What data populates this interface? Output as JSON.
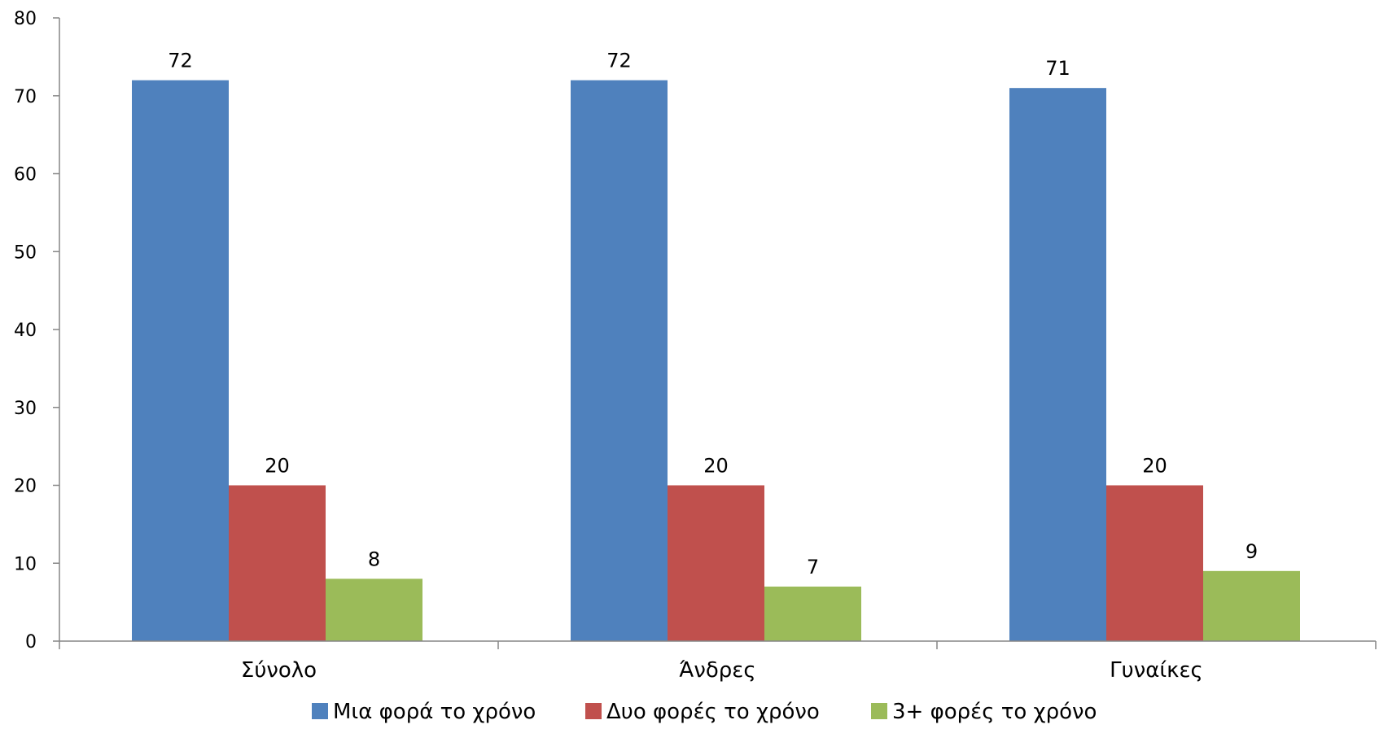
{
  "chart_data": {
    "type": "bar",
    "categories": [
      "Σύνολο",
      "Άνδρες",
      "Γυναίκες"
    ],
    "series": [
      {
        "name": "Μια φορά το χρόνο",
        "values": [
          72,
          72,
          71
        ],
        "labels": [
          "72",
          "72",
          "71"
        ],
        "color": "#4F81BD"
      },
      {
        "name": "Δυο φορές το χρόνο",
        "values": [
          20,
          20,
          20
        ],
        "labels": [
          "20",
          "20",
          "20"
        ],
        "color": "#C0504D"
      },
      {
        "name": "3+ φορές το χρόνο",
        "values": [
          8,
          7,
          9
        ],
        "labels": [
          "8",
          "7",
          "9"
        ],
        "color": "#9BBB59"
      }
    ],
    "yticks": [
      "0",
      "10",
      "20",
      "30",
      "40",
      "50",
      "60",
      "70",
      "80"
    ],
    "ylim": [
      0,
      80
    ],
    "grid": false,
    "legend_position": "bottom",
    "title": "",
    "xlabel": "",
    "ylabel": ""
  }
}
